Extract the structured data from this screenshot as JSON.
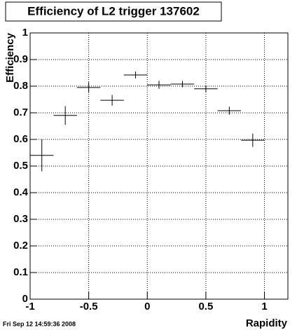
{
  "chart_data": {
    "type": "errorbar",
    "title": "Efficiency of L2 trigger 137602",
    "x_label": "Rapidity",
    "y_label": "Efficiency",
    "footer": "Fri Sep 12 14:59:36 2008",
    "x": [
      -0.9,
      -0.7,
      -0.5,
      -0.3,
      -0.1,
      0.1,
      0.3,
      0.5,
      0.7,
      0.9
    ],
    "xerrors": [
      0.1,
      0.1,
      0.1,
      0.1,
      0.1,
      0.1,
      0.1,
      0.1,
      0.1,
      0.1
    ],
    "values": [
      0.54,
      0.69,
      0.795,
      0.747,
      0.842,
      0.805,
      0.808,
      0.79,
      0.708,
      0.597
    ],
    "errors": [
      0.06,
      0.035,
      0.02,
      0.02,
      0.013,
      0.015,
      0.012,
      0.013,
      0.015,
      0.025
    ],
    "color": "#000000",
    "xlim": [
      -1,
      1.2
    ],
    "xticks": [
      -1,
      -0.5,
      0,
      0.5,
      1
    ],
    "ylim": [
      0,
      1
    ],
    "yticks": [
      0,
      0.1,
      0.2,
      0.3,
      0.4,
      0.5,
      0.6,
      0.7,
      0.8,
      0.9,
      1
    ],
    "grid": true
  }
}
